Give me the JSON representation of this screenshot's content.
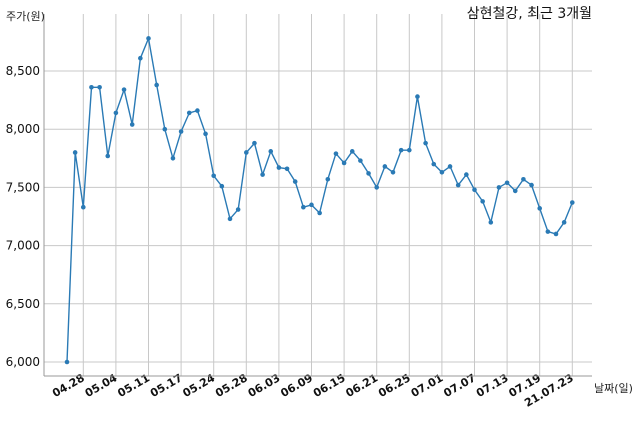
{
  "chart_data": {
    "type": "line",
    "title": "삼현철강, 최근 3개월",
    "ylabel": "주가(원)",
    "xlabel": "날짜(일)",
    "ylim": [
      5950,
      8850
    ],
    "yticks": [
      6000,
      6500,
      7000,
      7500,
      8000,
      8500
    ],
    "ytick_labels": [
      "6,000",
      "6,500",
      "7,000",
      "7,500",
      "8,000",
      "8,500"
    ],
    "grid": true,
    "x_tick_labels": [
      {
        "index": 2,
        "label": "04.28"
      },
      {
        "index": 6,
        "label": "05.04"
      },
      {
        "index": 10,
        "label": "05.11"
      },
      {
        "index": 14,
        "label": "05.17"
      },
      {
        "index": 18,
        "label": "05.24"
      },
      {
        "index": 22,
        "label": "05.28"
      },
      {
        "index": 26,
        "label": "06.03"
      },
      {
        "index": 30,
        "label": "06.09"
      },
      {
        "index": 34,
        "label": "06.15"
      },
      {
        "index": 38,
        "label": "06.21"
      },
      {
        "index": 42,
        "label": "06.25"
      },
      {
        "index": 46,
        "label": "07.01"
      },
      {
        "index": 50,
        "label": "07.07"
      },
      {
        "index": 54,
        "label": "07.13"
      },
      {
        "index": 58,
        "label": "07.19"
      },
      {
        "index": 62,
        "label": "21.07.23"
      }
    ],
    "series": [
      {
        "color": "#2a7ab5",
        "values": [
          6000,
          7800,
          7330,
          8360,
          8360,
          7770,
          8140,
          8340,
          8040,
          8610,
          8780,
          8380,
          8000,
          7750,
          7980,
          8140,
          8160,
          7960,
          7600,
          7510,
          7230,
          7310,
          7800,
          7880,
          7610,
          7810,
          7670,
          7660,
          7550,
          7330,
          7350,
          7280,
          7570,
          7790,
          7710,
          7810,
          7730,
          7620,
          7500,
          7680,
          7630,
          7820,
          7820,
          8280,
          7880,
          7700,
          7630,
          7680,
          7520,
          7610,
          7480,
          7380,
          7200,
          7500,
          7540,
          7470,
          7570,
          7520,
          7320,
          7120,
          7100,
          7200,
          7370
        ]
      }
    ]
  }
}
